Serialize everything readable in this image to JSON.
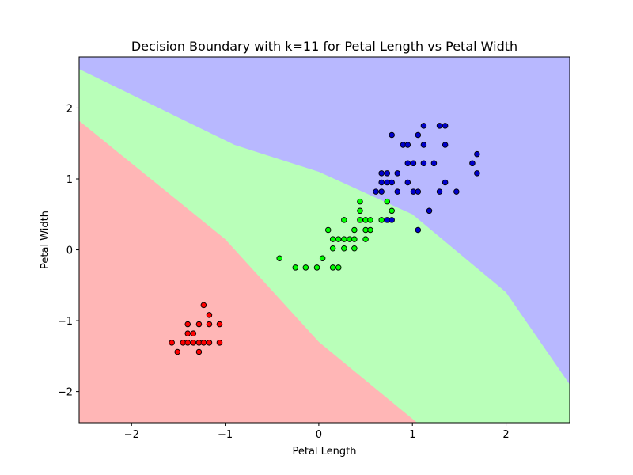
{
  "chart_data": {
    "type": "scatter",
    "title": "Decision Boundary with k=11 for Petal Length vs Petal Width",
    "xlabel": "Petal Length",
    "ylabel": "Petal Width",
    "xlim": [
      -2.56,
      2.68
    ],
    "ylim": [
      -2.44,
      2.72
    ],
    "xticks": [
      -2,
      -1,
      0,
      1,
      2
    ],
    "yticks": [
      -2,
      -1,
      0,
      1,
      2
    ],
    "grid": false,
    "regions": [
      {
        "class": 0,
        "color": "#ffb6b6"
      },
      {
        "class": 1,
        "color": "#b9ffb9"
      },
      {
        "class": 2,
        "color": "#b8b8ff"
      }
    ],
    "boundaries": {
      "red_green": [
        [
          -2.56,
          1.82
        ],
        [
          -1.0,
          0.15
        ],
        [
          0.0,
          -1.3
        ],
        [
          1.05,
          -2.44
        ]
      ],
      "green_blue": [
        [
          -2.56,
          2.55
        ],
        [
          -0.9,
          1.48
        ],
        [
          0.0,
          1.1
        ],
        [
          1.0,
          0.5
        ],
        [
          2.0,
          -0.6
        ],
        [
          2.68,
          -1.9
        ]
      ]
    },
    "series": [
      {
        "class": 0,
        "color": "#ff0000",
        "points": [
          [
            -1.57,
            -1.31
          ],
          [
            -1.51,
            -1.44
          ],
          [
            -1.45,
            -1.31
          ],
          [
            -1.4,
            -1.18
          ],
          [
            -1.4,
            -1.31
          ],
          [
            -1.4,
            -1.05
          ],
          [
            -1.34,
            -1.31
          ],
          [
            -1.34,
            -1.18
          ],
          [
            -1.28,
            -1.31
          ],
          [
            -1.28,
            -1.44
          ],
          [
            -1.28,
            -1.05
          ],
          [
            -1.23,
            -1.31
          ],
          [
            -1.23,
            -0.78
          ],
          [
            -1.17,
            -0.92
          ],
          [
            -1.17,
            -1.05
          ],
          [
            -1.17,
            -1.31
          ],
          [
            -1.06,
            -1.05
          ],
          [
            -1.06,
            -1.31
          ]
        ]
      },
      {
        "class": 1,
        "color": "#00ff00",
        "points": [
          [
            -0.42,
            -0.12
          ],
          [
            -0.25,
            -0.25
          ],
          [
            -0.14,
            -0.25
          ],
          [
            -0.02,
            -0.25
          ],
          [
            0.04,
            -0.12
          ],
          [
            0.1,
            0.28
          ],
          [
            0.15,
            0.15
          ],
          [
            0.15,
            0.02
          ],
          [
            0.15,
            -0.25
          ],
          [
            0.21,
            0.15
          ],
          [
            0.21,
            -0.25
          ],
          [
            0.27,
            0.42
          ],
          [
            0.27,
            0.15
          ],
          [
            0.27,
            0.02
          ],
          [
            0.33,
            0.15
          ],
          [
            0.38,
            0.28
          ],
          [
            0.38,
            0.15
          ],
          [
            0.38,
            0.02
          ],
          [
            0.44,
            0.42
          ],
          [
            0.44,
            0.55
          ],
          [
            0.44,
            0.68
          ],
          [
            0.5,
            0.42
          ],
          [
            0.5,
            0.28
          ],
          [
            0.5,
            0.15
          ],
          [
            0.55,
            0.42
          ],
          [
            0.55,
            0.28
          ],
          [
            0.67,
            0.42
          ],
          [
            0.73,
            0.68
          ],
          [
            0.78,
            0.55
          ]
        ]
      },
      {
        "class": 2,
        "color": "#0000cc",
        "points": [
          [
            0.73,
            0.42
          ],
          [
            0.78,
            0.42
          ],
          [
            0.61,
            0.82
          ],
          [
            0.67,
            0.82
          ],
          [
            0.67,
            0.95
          ],
          [
            0.67,
            1.08
          ],
          [
            0.73,
            0.95
          ],
          [
            0.73,
            1.08
          ],
          [
            0.78,
            0.95
          ],
          [
            0.78,
            1.62
          ],
          [
            0.84,
            1.08
          ],
          [
            0.84,
            0.82
          ],
          [
            0.9,
            1.48
          ],
          [
            0.95,
            1.48
          ],
          [
            0.95,
            1.22
          ],
          [
            0.95,
            0.95
          ],
          [
            1.01,
            1.22
          ],
          [
            1.01,
            0.82
          ],
          [
            1.06,
            1.62
          ],
          [
            1.06,
            0.82
          ],
          [
            1.06,
            0.28
          ],
          [
            1.12,
            1.75
          ],
          [
            1.12,
            1.48
          ],
          [
            1.12,
            1.22
          ],
          [
            1.18,
            0.55
          ],
          [
            1.23,
            1.22
          ],
          [
            1.29,
            1.75
          ],
          [
            1.29,
            0.82
          ],
          [
            1.35,
            1.75
          ],
          [
            1.35,
            1.48
          ],
          [
            1.35,
            0.95
          ],
          [
            1.47,
            0.82
          ],
          [
            1.64,
            1.22
          ],
          [
            1.69,
            1.35
          ],
          [
            1.69,
            1.08
          ]
        ]
      }
    ]
  }
}
